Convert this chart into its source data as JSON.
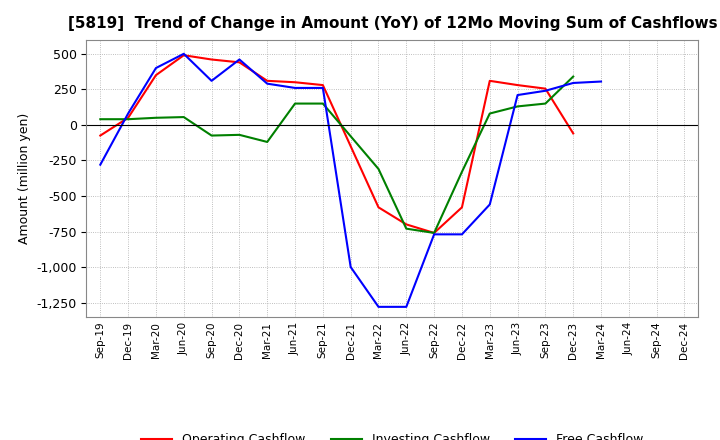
{
  "title": "[5819]  Trend of Change in Amount (YoY) of 12Mo Moving Sum of Cashflows",
  "ylabel": "Amount (million yen)",
  "x_labels": [
    "Sep-19",
    "Dec-19",
    "Mar-20",
    "Jun-20",
    "Sep-20",
    "Dec-20",
    "Mar-21",
    "Jun-21",
    "Sep-21",
    "Dec-21",
    "Mar-22",
    "Jun-22",
    "Sep-22",
    "Dec-22",
    "Mar-23",
    "Jun-23",
    "Sep-23",
    "Dec-23",
    "Mar-24",
    "Jun-24",
    "Sep-24",
    "Dec-24"
  ],
  "operating_cashflow": [
    -75,
    50,
    350,
    490,
    460,
    440,
    310,
    300,
    280,
    null,
    -580,
    -700,
    -760,
    -580,
    310,
    280,
    255,
    -60,
    null,
    null,
    null,
    null
  ],
  "investing_cashflow": [
    40,
    40,
    50,
    55,
    -75,
    -70,
    -120,
    150,
    150,
    null,
    -310,
    -730,
    -760,
    -330,
    80,
    130,
    150,
    340,
    null,
    null,
    null,
    null
  ],
  "free_cashflow": [
    -280,
    80,
    400,
    500,
    310,
    460,
    290,
    260,
    260,
    -1000,
    -1280,
    -1280,
    -770,
    -770,
    -560,
    210,
    240,
    295,
    305,
    null,
    null,
    null
  ],
  "ylim": [
    -1350,
    600
  ],
  "yticks": [
    500,
    250,
    0,
    -250,
    -500,
    -750,
    -1000,
    -1250
  ],
  "legend_labels": [
    "Operating Cashflow",
    "Investing Cashflow",
    "Free Cashflow"
  ],
  "line_colors": [
    "#ff0000",
    "#008000",
    "#0000ff"
  ],
  "background_color": "#ffffff",
  "grid_color": "#aaaaaa",
  "title_fontsize": 11,
  "axis_fontsize": 9
}
